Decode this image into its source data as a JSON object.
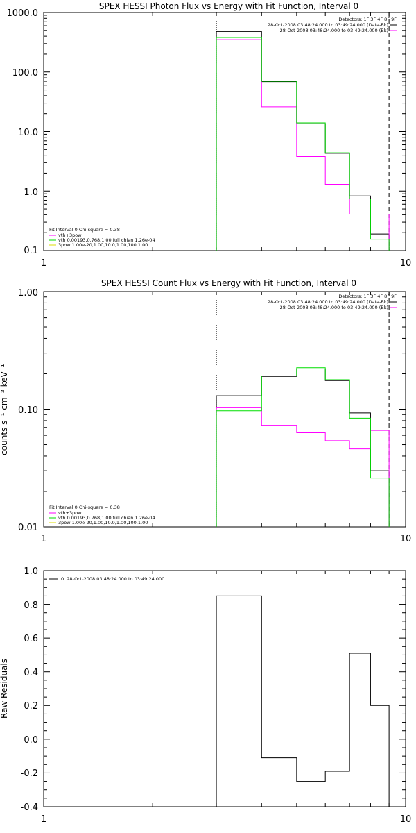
{
  "colors": {
    "data": "#000000",
    "bk": "#ff00ff",
    "vth": "#00dd00",
    "vth_3pow": "#ff00ff",
    "_3pow": "#dddd00"
  },
  "chart_data": [
    {
      "type": "line",
      "title": "SPEX HESSI Photon Flux vs Energy with Fit Function, Interval 0",
      "xscale": "log",
      "yscale": "log",
      "xlim": [
        1,
        10
      ],
      "ylim": [
        0.1,
        1000
      ],
      "xticks": [
        "1",
        "10"
      ],
      "yticks": [
        "0.1",
        "1.0",
        "10.0",
        "100.0",
        "1000.0"
      ],
      "ylabel": "",
      "vlines": [
        {
          "x": 3,
          "style": "dotted"
        },
        {
          "x": 9,
          "style": "dashed"
        }
      ],
      "legend_top": [
        "Detectors: 1F 3F 4F 8F 9F",
        "28-Oct-2008 03:48:24.000 to 03:49:24.000 (Data-Bk)",
        "28-Oct-2008 03:48:24.000 to 03:49:24.000 (Bk)"
      ],
      "legend_bottom": [
        "Fit Interval 0   Chi-square = 0.38",
        "vth+3pow",
        "vth 0.00193,0.768,1.00  full chian 1.26e-04",
        "3pow 1.00e-20,1.00,10.0,1.00,100,1.00"
      ],
      "series": [
        {
          "name": "Data-Bk",
          "edges": [
            3,
            4,
            5,
            6,
            7,
            8,
            9
          ],
          "values": [
            480,
            69,
            13.5,
            4.3,
            0.83,
            0.19
          ]
        },
        {
          "name": "Bk",
          "edges": [
            3,
            4,
            5,
            6,
            7,
            8,
            9
          ],
          "values": [
            350,
            26,
            3.8,
            1.3,
            0.41,
            0.41
          ]
        },
        {
          "name": "vth+3pow",
          "edges": [
            3,
            4,
            5,
            6,
            7,
            8,
            9
          ],
          "values": [
            380,
            70,
            14,
            4.4,
            0.74,
            0.155
          ]
        }
      ]
    },
    {
      "type": "line",
      "title": "SPEX HESSI Count Flux vs Energy with Fit Function, Interval 0",
      "xscale": "log",
      "yscale": "log",
      "xlim": [
        1,
        10
      ],
      "ylim": [
        0.01,
        1
      ],
      "xticks": [
        "1",
        "10"
      ],
      "yticks": [
        "0.01",
        "0.10",
        "1.00"
      ],
      "ylabel": "counts s⁻¹ cm⁻² keV⁻¹",
      "vlines": [
        {
          "x": 3,
          "style": "dotted"
        },
        {
          "x": 9,
          "style": "dashed"
        }
      ],
      "legend_top": [
        "Detectors: 1F 3F 4F 8F 9F",
        "28-Oct-2008 03:48:24.000 to 03:49:24.000 (Data-Bk)",
        "28-Oct-2008 03:48:24.000 to 03:49:24.000 (Bk)"
      ],
      "legend_bottom": [
        "Fit Interval 0   Chi-square = 0.38",
        "vth+3pow",
        "vth 0.00193,0.768,1.00  full chian 1.26e-04",
        "3pow 1.00e-20,1.00,10.0,1.00,100,1.00"
      ],
      "series": [
        {
          "name": "Data-Bk",
          "edges": [
            3,
            4,
            5,
            6,
            7,
            8,
            9
          ],
          "values": [
            0.13,
            0.19,
            0.22,
            0.175,
            0.093,
            0.03
          ]
        },
        {
          "name": "Bk",
          "edges": [
            3,
            4,
            5,
            6,
            7,
            8,
            9
          ],
          "values": [
            0.103,
            0.073,
            0.063,
            0.054,
            0.046,
            0.066
          ]
        },
        {
          "name": "vth+3pow",
          "edges": [
            3,
            4,
            5,
            6,
            7,
            8,
            9
          ],
          "values": [
            0.097,
            0.192,
            0.225,
            0.178,
            0.084,
            0.026
          ]
        }
      ]
    },
    {
      "type": "line",
      "title": "",
      "xscale": "log",
      "yscale": "linear",
      "xlim": [
        1,
        10
      ],
      "ylim": [
        -0.4,
        1.0
      ],
      "xticks": [
        "1",
        "10"
      ],
      "yticks": [
        "-0.4",
        "-0.2",
        "0.0",
        "0.2",
        "0.4",
        "0.6",
        "0.8",
        "1.0"
      ],
      "ylabel": "Raw Residuals",
      "legend_top": [
        "0. 28-Oct-2008 03:48:24.000 to 03:49:24.000"
      ],
      "series": [
        {
          "name": "0. 28-Oct-2008 03:48:24.000 to 03:49:24.000",
          "edges": [
            3,
            4,
            5,
            6,
            7,
            8,
            9
          ],
          "values": [
            0.85,
            -0.11,
            -0.25,
            -0.19,
            0.51,
            0.2
          ]
        }
      ]
    }
  ]
}
